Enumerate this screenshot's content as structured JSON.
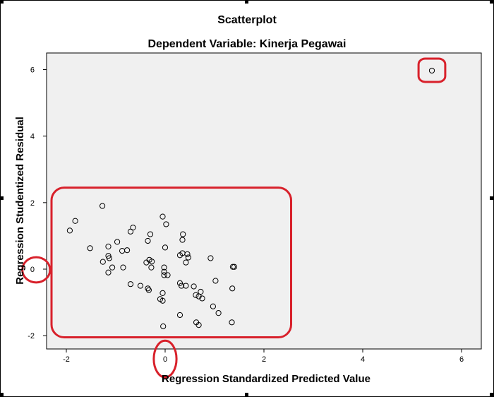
{
  "chart_data": {
    "type": "scatter",
    "title": "Scatterplot",
    "subtitle": "Dependent Variable: Kinerja Pegawai",
    "xlabel": "Regression Standardized Predicted Value",
    "ylabel": "Regression Studentized Residual",
    "xlim": [
      -2.4,
      6.4
    ],
    "ylim": [
      -2.4,
      6.5
    ],
    "xticks": [
      -2,
      0,
      2,
      4,
      6
    ],
    "yticks": [
      -2,
      0,
      2,
      4,
      6
    ],
    "grid": false,
    "colors": {
      "plot_background": "#f0f0f0",
      "marker_stroke": "#000000",
      "annotation": "#d8212b"
    },
    "points": [
      {
        "x": 5.4,
        "y": 5.97
      },
      {
        "x": -1.27,
        "y": 1.9
      },
      {
        "x": -1.82,
        "y": 1.45
      },
      {
        "x": -1.93,
        "y": 1.16
      },
      {
        "x": -1.52,
        "y": 0.63
      },
      {
        "x": -1.15,
        "y": 0.4
      },
      {
        "x": -1.13,
        "y": 0.33
      },
      {
        "x": -1.15,
        "y": 0.68
      },
      {
        "x": -0.97,
        "y": 0.82
      },
      {
        "x": -1.26,
        "y": 0.22
      },
      {
        "x": -1.07,
        "y": 0.05
      },
      {
        "x": -0.85,
        "y": 0.05
      },
      {
        "x": -1.15,
        "y": -0.1
      },
      {
        "x": -0.65,
        "y": 1.25
      },
      {
        "x": -0.7,
        "y": 1.13
      },
      {
        "x": -0.87,
        "y": 0.55
      },
      {
        "x": -0.77,
        "y": 0.57
      },
      {
        "x": -0.3,
        "y": 1.05
      },
      {
        "x": -0.35,
        "y": 0.85
      },
      {
        "x": -0.32,
        "y": 0.28
      },
      {
        "x": -0.38,
        "y": 0.2
      },
      {
        "x": -0.27,
        "y": 0.23
      },
      {
        "x": -0.28,
        "y": 0.05
      },
      {
        "x": -0.5,
        "y": -0.5
      },
      {
        "x": -0.7,
        "y": -0.45
      },
      {
        "x": -0.35,
        "y": -0.58
      },
      {
        "x": -0.33,
        "y": -0.63
      },
      {
        "x": -0.05,
        "y": 1.58
      },
      {
        "x": 0.02,
        "y": 1.35
      },
      {
        "x": 0.0,
        "y": 0.65
      },
      {
        "x": -0.02,
        "y": 0.05
      },
      {
        "x": -0.02,
        "y": -0.08
      },
      {
        "x": -0.02,
        "y": -0.18
      },
      {
        "x": 0.05,
        "y": -0.18
      },
      {
        "x": -0.05,
        "y": -0.72
      },
      {
        "x": -0.1,
        "y": -0.9
      },
      {
        "x": -0.05,
        "y": -0.95
      },
      {
        "x": -0.04,
        "y": -1.72
      },
      {
        "x": 0.3,
        "y": 0.42
      },
      {
        "x": 0.35,
        "y": 0.48
      },
      {
        "x": 0.36,
        "y": 1.05
      },
      {
        "x": 0.35,
        "y": 0.88
      },
      {
        "x": 0.45,
        "y": 0.45
      },
      {
        "x": 0.47,
        "y": 0.35
      },
      {
        "x": 0.42,
        "y": 0.2
      },
      {
        "x": 0.3,
        "y": -0.42
      },
      {
        "x": 0.33,
        "y": -0.5
      },
      {
        "x": 0.42,
        "y": -0.5
      },
      {
        "x": 0.3,
        "y": -1.38
      },
      {
        "x": 0.58,
        "y": -0.52
      },
      {
        "x": 0.62,
        "y": -0.78
      },
      {
        "x": 0.68,
        "y": -0.82
      },
      {
        "x": 0.72,
        "y": -0.68
      },
      {
        "x": 0.75,
        "y": -0.88
      },
      {
        "x": 0.63,
        "y": -1.6
      },
      {
        "x": 0.68,
        "y": -1.68
      },
      {
        "x": 0.92,
        "y": 0.33
      },
      {
        "x": 1.02,
        "y": -0.35
      },
      {
        "x": 0.97,
        "y": -1.12
      },
      {
        "x": 1.08,
        "y": -1.32
      },
      {
        "x": 1.37,
        "y": 0.07
      },
      {
        "x": 1.4,
        "y": 0.07
      },
      {
        "x": 1.36,
        "y": -0.58
      },
      {
        "x": 1.35,
        "y": -1.6
      }
    ],
    "annotations": [
      {
        "shape": "rounded-rect",
        "x0": -2.3,
        "x1": 2.55,
        "y0": -2.05,
        "y1": 2.45
      },
      {
        "shape": "rounded-rect",
        "x0": 5.13,
        "x1": 5.67,
        "y0": 5.63,
        "y1": 6.33
      },
      {
        "shape": "ellipse",
        "cx": -2.61,
        "cy": -0.02,
        "rx": 0.28,
        "ry": 0.38
      },
      {
        "shape": "ellipse",
        "cx": 0.0,
        "cy": -2.7,
        "rx": 0.23,
        "ry": 0.55
      }
    ]
  }
}
